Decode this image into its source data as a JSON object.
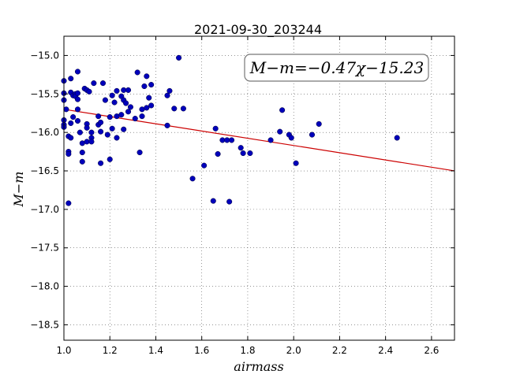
{
  "chart_data": {
    "type": "scatter",
    "title": "2021-09-30_203244",
    "xlabel": "airmass",
    "ylabel": "M−m",
    "xlim": [
      1.0,
      2.7
    ],
    "ylim": [
      -18.7,
      -14.75
    ],
    "y_inverted": true,
    "grid": true,
    "x_ticks": [
      1.0,
      1.2,
      1.4,
      1.6,
      1.8,
      2.0,
      2.2,
      2.4,
      2.6
    ],
    "x_tick_labels": [
      "1.0",
      "1.2",
      "1.4",
      "1.6",
      "1.8",
      "2.0",
      "2.2",
      "2.4",
      "2.6"
    ],
    "y_ticks": [
      -15.0,
      -15.5,
      -16.0,
      -16.5,
      -17.0,
      -17.5,
      -18.0,
      -18.5
    ],
    "y_tick_labels": [
      "−15.0",
      "−15.5",
      "−16.0",
      "−16.5",
      "−17.0",
      "−17.5",
      "−18.0",
      "−18.5"
    ],
    "annotation": "M−m=−0.47χ−15.23",
    "annotation_position": "top-right",
    "fit": {
      "slope": -0.47,
      "intercept": -15.23,
      "color": "#cc0000"
    },
    "point_color": "#0000bb",
    "points": [
      [
        1.0,
        -15.33
      ],
      [
        1.0,
        -15.49
      ],
      [
        1.0,
        -15.58
      ],
      [
        1.0,
        -15.84
      ],
      [
        1.0,
        -15.9
      ],
      [
        1.0,
        -15.93
      ],
      [
        1.01,
        -15.7
      ],
      [
        1.02,
        -16.05
      ],
      [
        1.02,
        -16.25
      ],
      [
        1.02,
        -16.28
      ],
      [
        1.02,
        -16.92
      ],
      [
        1.03,
        -15.3
      ],
      [
        1.03,
        -15.48
      ],
      [
        1.03,
        -16.07
      ],
      [
        1.03,
        -15.88
      ],
      [
        1.04,
        -15.52
      ],
      [
        1.04,
        -15.8
      ],
      [
        1.05,
        -15.5
      ],
      [
        1.05,
        -15.53
      ],
      [
        1.06,
        -15.21
      ],
      [
        1.06,
        -15.49
      ],
      [
        1.06,
        -15.57
      ],
      [
        1.06,
        -15.85
      ],
      [
        1.06,
        -15.7
      ],
      [
        1.07,
        -16.0
      ],
      [
        1.08,
        -16.14
      ],
      [
        1.08,
        -16.38
      ],
      [
        1.08,
        -16.26
      ],
      [
        1.09,
        -15.43
      ],
      [
        1.1,
        -15.45
      ],
      [
        1.1,
        -15.89
      ],
      [
        1.1,
        -15.94
      ],
      [
        1.1,
        -16.12
      ],
      [
        1.11,
        -15.47
      ],
      [
        1.12,
        -16.0
      ],
      [
        1.12,
        -16.07
      ],
      [
        1.12,
        -16.12
      ],
      [
        1.13,
        -15.36
      ],
      [
        1.15,
        -15.79
      ],
      [
        1.15,
        -15.9
      ],
      [
        1.16,
        -15.87
      ],
      [
        1.16,
        -15.99
      ],
      [
        1.16,
        -16.4
      ],
      [
        1.17,
        -15.36
      ],
      [
        1.18,
        -15.58
      ],
      [
        1.19,
        -16.03
      ],
      [
        1.2,
        -15.8
      ],
      [
        1.2,
        -16.35
      ],
      [
        1.21,
        -15.52
      ],
      [
        1.21,
        -15.95
      ],
      [
        1.22,
        -15.61
      ],
      [
        1.23,
        -15.46
      ],
      [
        1.23,
        -16.07
      ],
      [
        1.23,
        -15.79
      ],
      [
        1.25,
        -15.53
      ],
      [
        1.25,
        -15.77
      ],
      [
        1.26,
        -15.45
      ],
      [
        1.26,
        -15.58
      ],
      [
        1.26,
        -15.96
      ],
      [
        1.27,
        -15.62
      ],
      [
        1.28,
        -15.45
      ],
      [
        1.28,
        -15.73
      ],
      [
        1.29,
        -15.67
      ],
      [
        1.31,
        -15.82
      ],
      [
        1.32,
        -15.22
      ],
      [
        1.33,
        -16.26
      ],
      [
        1.34,
        -15.7
      ],
      [
        1.34,
        -15.79
      ],
      [
        1.35,
        -15.4
      ],
      [
        1.36,
        -15.27
      ],
      [
        1.36,
        -15.68
      ],
      [
        1.37,
        -15.55
      ],
      [
        1.38,
        -15.38
      ],
      [
        1.38,
        -15.65
      ],
      [
        1.45,
        -15.91
      ],
      [
        1.45,
        -15.52
      ],
      [
        1.46,
        -15.46
      ],
      [
        1.48,
        -15.69
      ],
      [
        1.5,
        -15.03
      ],
      [
        1.52,
        -15.69
      ],
      [
        1.56,
        -16.6
      ],
      [
        1.61,
        -16.43
      ],
      [
        1.65,
        -16.89
      ],
      [
        1.66,
        -15.95
      ],
      [
        1.67,
        -16.28
      ],
      [
        1.69,
        -16.1
      ],
      [
        1.71,
        -16.1
      ],
      [
        1.72,
        -16.9
      ],
      [
        1.73,
        -16.1
      ],
      [
        1.77,
        -16.2
      ],
      [
        1.78,
        -16.27
      ],
      [
        1.81,
        -16.27
      ],
      [
        1.9,
        -16.1
      ],
      [
        1.94,
        -15.99
      ],
      [
        1.95,
        -15.71
      ],
      [
        1.98,
        -16.03
      ],
      [
        1.99,
        -16.07
      ],
      [
        2.01,
        -16.4
      ],
      [
        2.08,
        -16.03
      ],
      [
        2.11,
        -15.89
      ],
      [
        2.45,
        -16.07
      ]
    ]
  }
}
